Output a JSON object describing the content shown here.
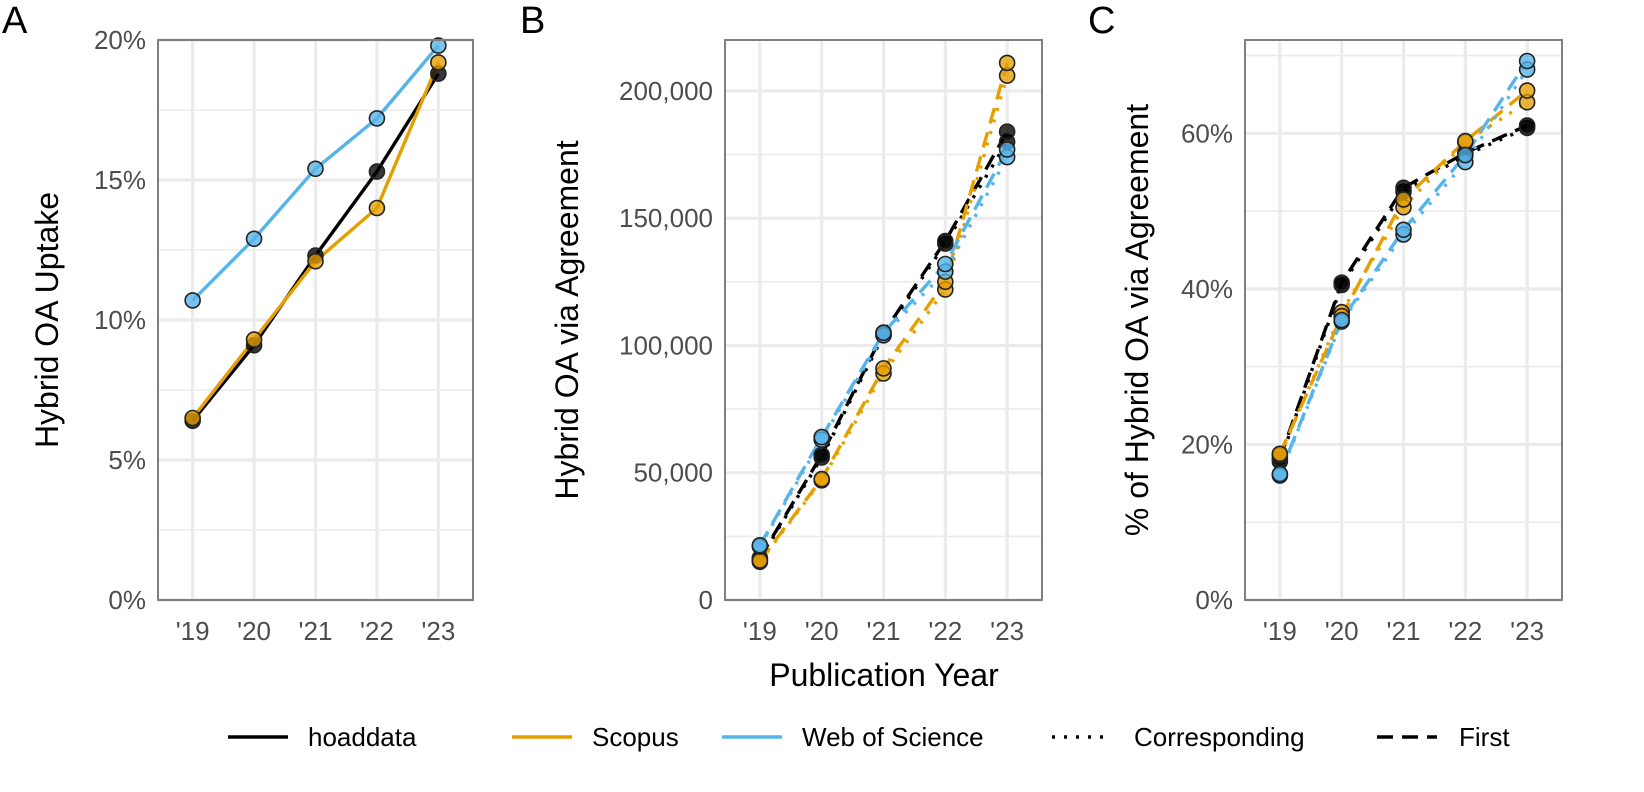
{
  "chart_data": [
    {
      "type": "line",
      "panel_label": "A",
      "title": "",
      "xlabel": "",
      "ylabel": "Hybrid OA Uptake",
      "categories": [
        "'19",
        "'20",
        "'21",
        "'22",
        "'23"
      ],
      "ylim": [
        0,
        0.2
      ],
      "yticks": [
        0,
        0.05,
        0.1,
        0.15,
        0.2
      ],
      "ytick_labels": [
        "0%",
        "5%",
        "10%",
        "15%",
        "20%"
      ],
      "grid": true,
      "series": [
        {
          "name": "hoaddata",
          "color": "#000000",
          "values": [
            0.064,
            0.091,
            0.123,
            0.153,
            0.188
          ]
        },
        {
          "name": "Scopus",
          "color": "#E69F00",
          "values": [
            0.065,
            0.093,
            0.121,
            0.14,
            0.192
          ]
        },
        {
          "name": "Web of Science",
          "color": "#56B4E9",
          "values": [
            0.107,
            0.129,
            0.154,
            0.172,
            0.198
          ]
        }
      ]
    },
    {
      "type": "line",
      "panel_label": "B",
      "title": "",
      "xlabel": "Publication Year",
      "ylabel": "Hybrid OA via Agreement",
      "categories": [
        "'19",
        "'20",
        "'21",
        "'22",
        "'23"
      ],
      "ylim": [
        0,
        220000
      ],
      "yticks": [
        0,
        50000,
        100000,
        150000,
        200000
      ],
      "ytick_labels": [
        "0",
        "50,000",
        "100,000",
        "150,000",
        "200,000"
      ],
      "grid": true,
      "series": [
        {
          "name": "hoaddata",
          "author_role": "Corresponding",
          "color": "#000000",
          "linetype": "dotted",
          "values": [
            16000,
            56000,
            104000,
            140000,
            180000
          ]
        },
        {
          "name": "hoaddata",
          "author_role": "First",
          "color": "#000000",
          "linetype": "dashed",
          "values": [
            16500,
            57000,
            105000,
            141000,
            184000
          ]
        },
        {
          "name": "Scopus",
          "author_role": "Corresponding",
          "color": "#E69F00",
          "linetype": "dotted",
          "values": [
            15000,
            47000,
            89000,
            122000,
            206000
          ]
        },
        {
          "name": "Scopus",
          "author_role": "First",
          "color": "#E69F00",
          "linetype": "dashed",
          "values": [
            15500,
            47500,
            91000,
            125000,
            211000
          ]
        },
        {
          "name": "Web of Science",
          "author_role": "Corresponding",
          "color": "#56B4E9",
          "linetype": "dotted",
          "values": [
            21000,
            63000,
            104000,
            129000,
            174000
          ]
        },
        {
          "name": "Web of Science",
          "author_role": "First",
          "color": "#56B4E9",
          "linetype": "dashed",
          "values": [
            21500,
            64000,
            105000,
            132000,
            177000
          ]
        }
      ]
    },
    {
      "type": "line",
      "panel_label": "C",
      "title": "",
      "xlabel": "",
      "ylabel": "% of Hybrid OA via Agreement",
      "categories": [
        "'19",
        "'20",
        "'21",
        "'22",
        "'23"
      ],
      "ylim": [
        0,
        0.72
      ],
      "yticks": [
        0,
        0.2,
        0.4,
        0.6
      ],
      "ytick_labels": [
        "0%",
        "20%",
        "40%",
        "60%"
      ],
      "grid": true,
      "series": [
        {
          "name": "hoaddata",
          "author_role": "Corresponding",
          "color": "#000000",
          "linetype": "dotted",
          "values": [
            0.178,
            0.405,
            0.525,
            0.572,
            0.607
          ]
        },
        {
          "name": "hoaddata",
          "author_role": "First",
          "color": "#000000",
          "linetype": "dashed",
          "values": [
            0.182,
            0.408,
            0.53,
            0.575,
            0.61
          ]
        },
        {
          "name": "Scopus",
          "author_role": "Corresponding",
          "color": "#E69F00",
          "linetype": "dotted",
          "values": [
            0.186,
            0.37,
            0.505,
            0.589,
            0.64
          ]
        },
        {
          "name": "Scopus",
          "author_role": "First",
          "color": "#E69F00",
          "linetype": "dashed",
          "values": [
            0.188,
            0.365,
            0.515,
            0.59,
            0.655
          ]
        },
        {
          "name": "Web of Science",
          "author_role": "Corresponding",
          "color": "#56B4E9",
          "linetype": "dotted",
          "values": [
            0.16,
            0.358,
            0.47,
            0.563,
            0.682
          ]
        },
        {
          "name": "Web of Science",
          "author_role": "First",
          "color": "#56B4E9",
          "linetype": "dashed",
          "values": [
            0.162,
            0.36,
            0.476,
            0.572,
            0.693
          ]
        }
      ]
    }
  ],
  "legend": {
    "position": "bottom",
    "source": [
      {
        "label": "hoaddata",
        "color": "#000000"
      },
      {
        "label": "Scopus",
        "color": "#E69F00"
      },
      {
        "label": "Web of Science",
        "color": "#56B4E9"
      }
    ],
    "author_role": [
      {
        "label": "Corresponding",
        "linetype": "dotted"
      },
      {
        "label": "First",
        "linetype": "dashed"
      }
    ]
  }
}
